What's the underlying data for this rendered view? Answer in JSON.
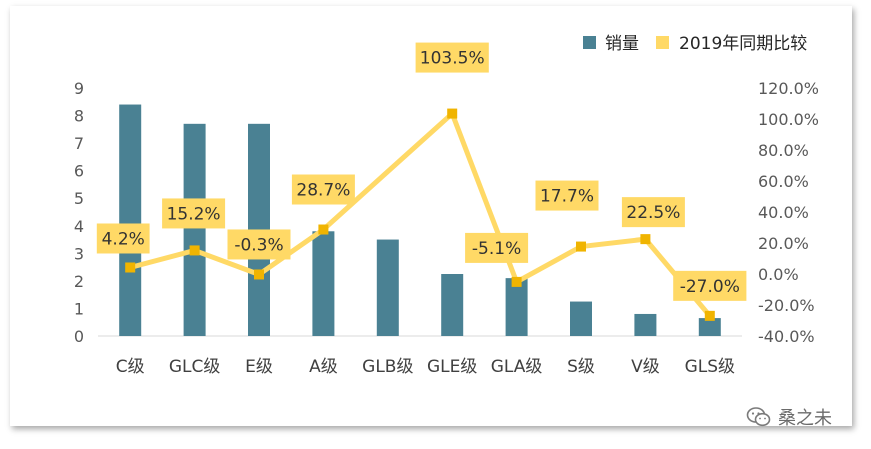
{
  "chart_data": {
    "type": "bar+line",
    "categories": [
      "C级",
      "GLC级",
      "E级",
      "A级",
      "GLB级",
      "GLE级",
      "GLA级",
      "S级",
      "V级",
      "GLS级"
    ],
    "series": [
      {
        "name": "销量",
        "type": "bar",
        "axis": "left",
        "color": "#4a8193",
        "values": [
          8.4,
          7.7,
          7.7,
          3.8,
          3.5,
          2.25,
          2.1,
          1.25,
          0.8,
          0.65
        ]
      },
      {
        "name": "2019年同期比较",
        "type": "line",
        "axis": "right",
        "color": "#ffd966",
        "marker_color": "#f0b400",
        "values": [
          4.2,
          15.2,
          -0.3,
          28.7,
          null,
          103.5,
          -5.1,
          17.7,
          22.5,
          -27.0
        ],
        "labels": [
          "4.2%",
          "15.2%",
          "-0.3%",
          "28.7%",
          "",
          "103.5%",
          "-5.1%",
          "17.7%",
          "22.5%",
          "-27.0%"
        ]
      }
    ],
    "y_left": {
      "ylim": [
        0,
        9
      ],
      "ticks": [
        "0",
        "1",
        "2",
        "3",
        "4",
        "5",
        "6",
        "7",
        "8",
        "9"
      ]
    },
    "y_right": {
      "ylim": [
        -40,
        120
      ],
      "ticks": [
        "-40.0%",
        "-20.0%",
        "0.0%",
        "20.0%",
        "40.0%",
        "60.0%",
        "80.0%",
        "100.0%",
        "120.0%"
      ]
    },
    "legend_position": "top-right",
    "grid": false
  },
  "watermark": {
    "text": "桑之未",
    "icon": "wechat-icon"
  }
}
